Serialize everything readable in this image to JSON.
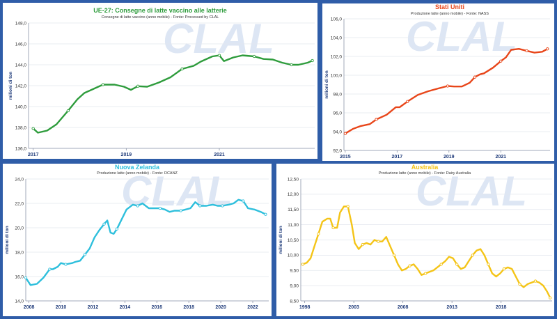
{
  "chart_data": [
    {
      "type": "line",
      "title": "UE-27: Consegne di latte vaccino alle latterie",
      "subtitle": "Consegne di latte vaccino (anno mobile) - Fonte: Processed by CLAL",
      "ylabel": "milioni di ton",
      "xlabel": "",
      "ylim": [
        136.0,
        148.0
      ],
      "xlim": [
        2016.9,
        2023.05
      ],
      "yticks": [
        "136,0",
        "138,0",
        "140,0",
        "142,0",
        "144,0",
        "146,0",
        "148,0"
      ],
      "xticks": [
        "2017",
        "2019",
        "2021"
      ],
      "color": "#2e9c3c",
      "title_color": "#2e9c3c",
      "watermark": "CLAL",
      "series": [
        {
          "x": [
            2017.0,
            2017.1,
            2017.3,
            2017.5,
            2017.75,
            2017.95,
            2018.1,
            2018.3,
            2018.5,
            2018.75,
            2018.95,
            2019.1,
            2019.25,
            2019.45,
            2019.7,
            2019.95,
            2020.2,
            2020.45,
            2020.6,
            2020.85,
            2021.0,
            2021.1,
            2021.3,
            2021.5,
            2021.75,
            2021.95,
            2022.15,
            2022.35,
            2022.55,
            2022.7,
            2022.9,
            2023.0
          ],
          "y": [
            137.9,
            137.5,
            137.7,
            138.3,
            139.6,
            140.7,
            141.3,
            141.7,
            142.1,
            142.1,
            141.9,
            141.6,
            141.95,
            141.9,
            142.3,
            142.8,
            143.6,
            143.9,
            144.3,
            144.8,
            144.9,
            144.35,
            144.7,
            144.9,
            144.8,
            144.55,
            144.5,
            144.2,
            144.0,
            144.0,
            144.2,
            144.4
          ]
        }
      ]
    },
    {
      "type": "line",
      "title": "Stati Uniti",
      "subtitle": "Produzione latte (anno mobile) - Fonte: NASS",
      "ylabel": "milioni di ton",
      "xlabel": "",
      "ylim": [
        92.0,
        106.0
      ],
      "xlim": [
        2014.95,
        2022.9
      ],
      "yticks": [
        "92,0",
        "94,0",
        "96,0",
        "98,0",
        "100,0",
        "102,0",
        "104,0",
        "106,0"
      ],
      "xticks": [
        "2015",
        "2017",
        "2019",
        "2021"
      ],
      "color": "#e8461a",
      "title_color": "#e8461a",
      "watermark": "CLAL",
      "series": [
        {
          "x": [
            2015.0,
            2015.3,
            2015.6,
            2015.95,
            2016.2,
            2016.6,
            2016.95,
            2017.1,
            2017.4,
            2017.8,
            2018.2,
            2018.6,
            2018.95,
            2019.2,
            2019.5,
            2019.8,
            2020.0,
            2020.2,
            2020.35,
            2020.7,
            2021.0,
            2021.2,
            2021.4,
            2021.7,
            2022.0,
            2022.3,
            2022.6,
            2022.8
          ],
          "y": [
            93.8,
            94.3,
            94.6,
            94.8,
            95.3,
            95.8,
            96.6,
            96.6,
            97.2,
            97.9,
            98.3,
            98.6,
            98.85,
            98.8,
            98.8,
            99.2,
            99.8,
            100.1,
            100.2,
            100.8,
            101.5,
            101.9,
            102.7,
            102.8,
            102.6,
            102.4,
            102.5,
            102.8
          ]
        }
      ]
    },
    {
      "type": "line",
      "title": "Nuova Zelanda",
      "subtitle": "Produzione latte (anno mobile) - Fonte: DCANZ",
      "ylabel": "milioni di ton",
      "xlabel": "",
      "ylim": [
        14.0,
        24.0
      ],
      "xlim": [
        2007.8,
        2023.0
      ],
      "yticks": [
        "14,0",
        "16,0",
        "18,0",
        "20,0",
        "22,0",
        "24,0"
      ],
      "xticks": [
        "2008",
        "2010",
        "2012",
        "2014",
        "2016",
        "2018",
        "2020",
        "2022"
      ],
      "color": "#2ebfdc",
      "title_color": "#2ebfdc",
      "watermark": "CLAL",
      "series": [
        {
          "x": [
            2007.8,
            2008.1,
            2008.5,
            2008.9,
            2009.3,
            2009.5,
            2009.8,
            2010.0,
            2010.3,
            2010.7,
            2010.9,
            2011.2,
            2011.5,
            2011.8,
            2012.1,
            2012.4,
            2012.7,
            2012.9,
            2013.1,
            2013.3,
            2013.5,
            2013.8,
            2014.1,
            2014.5,
            2014.8,
            2015.1,
            2015.5,
            2015.8,
            2016.2,
            2016.5,
            2016.8,
            2017.1,
            2017.5,
            2017.8,
            2018.1,
            2018.4,
            2018.7,
            2019.1,
            2019.5,
            2019.8,
            2020.1,
            2020.5,
            2020.8,
            2021.1,
            2021.4,
            2021.7,
            2022.1,
            2022.5,
            2022.8
          ],
          "y": [
            15.9,
            15.3,
            15.4,
            15.9,
            16.6,
            16.6,
            16.8,
            17.1,
            17.0,
            17.1,
            17.2,
            17.3,
            17.8,
            18.3,
            19.2,
            19.8,
            20.3,
            20.6,
            19.6,
            19.5,
            19.9,
            20.7,
            21.5,
            21.9,
            21.8,
            22.0,
            21.6,
            21.6,
            21.6,
            21.5,
            21.3,
            21.4,
            21.4,
            21.5,
            21.6,
            22.1,
            21.8,
            21.8,
            21.9,
            21.8,
            21.8,
            21.9,
            22.0,
            22.3,
            22.2,
            21.6,
            21.5,
            21.3,
            21.1
          ]
        }
      ]
    },
    {
      "type": "line",
      "title": "Australia",
      "subtitle": "Produzione latte (anno mobile) - Fonte: Dairy Australia",
      "ylabel": "milioni di ton",
      "xlabel": "",
      "ylim": [
        8.5,
        12.5
      ],
      "xlim": [
        1997.6,
        2023.2
      ],
      "yticks": [
        "8,50",
        "9,00",
        "9,50",
        "10,00",
        "10,50",
        "11,00",
        "11,50",
        "12,00",
        "12,50"
      ],
      "xticks": [
        "1998",
        "2003",
        "2008",
        "2013",
        "2018"
      ],
      "color": "#f4c417",
      "title_color": "#f4c417",
      "watermark": "CLAL",
      "series": [
        {
          "x": [
            1997.8,
            1998.2,
            1998.6,
            1999.0,
            1999.4,
            1999.8,
            2000.3,
            2000.6,
            2000.9,
            2001.3,
            2001.6,
            2002.0,
            2002.4,
            2002.8,
            2003.1,
            2003.5,
            2003.9,
            2004.3,
            2004.7,
            2005.1,
            2005.5,
            2005.9,
            2006.3,
            2006.7,
            2007.1,
            2007.5,
            2007.9,
            2008.3,
            2008.7,
            2009.1,
            2009.5,
            2009.9,
            2010.3,
            2010.7,
            2011.1,
            2011.5,
            2011.9,
            2012.3,
            2012.7,
            2013.1,
            2013.5,
            2013.9,
            2014.3,
            2014.7,
            2015.1,
            2015.5,
            2015.9,
            2016.3,
            2016.7,
            2017.1,
            2017.5,
            2017.9,
            2018.3,
            2018.7,
            2019.1,
            2019.5,
            2019.9,
            2020.3,
            2020.7,
            2021.1,
            2021.5,
            2021.9,
            2022.3,
            2022.7,
            2023.0
          ],
          "y": [
            9.7,
            9.75,
            9.9,
            10.3,
            10.7,
            11.1,
            11.2,
            11.2,
            10.9,
            10.9,
            11.4,
            11.6,
            11.6,
            11.0,
            10.4,
            10.2,
            10.35,
            10.4,
            10.35,
            10.5,
            10.45,
            10.45,
            10.6,
            10.3,
            10.0,
            9.7,
            9.5,
            9.55,
            9.65,
            9.7,
            9.55,
            9.35,
            9.4,
            9.45,
            9.5,
            9.6,
            9.7,
            9.8,
            9.95,
            9.9,
            9.7,
            9.55,
            9.6,
            9.8,
            10.0,
            10.15,
            10.2,
            10.0,
            9.7,
            9.4,
            9.3,
            9.4,
            9.55,
            9.6,
            9.55,
            9.3,
            9.05,
            8.95,
            9.05,
            9.1,
            9.15,
            9.1,
            9.0,
            8.8,
            8.6
          ]
        }
      ]
    }
  ]
}
